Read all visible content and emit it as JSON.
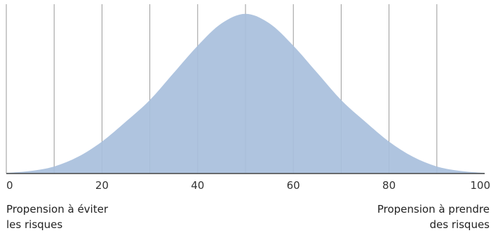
{
  "chart_data": {
    "type": "area",
    "title": "",
    "xlim": [
      0,
      100
    ],
    "ylim": [
      0,
      1.06
    ],
    "x_ticks": [
      0,
      20,
      40,
      60,
      80,
      100
    ],
    "x_tick_labels": [
      "0",
      "20",
      "40",
      "60",
      "80",
      "100"
    ],
    "grid_x": [
      10,
      20,
      30,
      40,
      50,
      60,
      70,
      80,
      90
    ],
    "grid": true,
    "x": [
      0,
      5,
      10,
      15,
      20,
      25,
      30,
      35,
      40,
      45,
      50,
      55,
      60,
      65,
      70,
      75,
      80,
      85,
      90,
      95,
      100
    ],
    "y": [
      0.004,
      0.016,
      0.044,
      0.105,
      0.2,
      0.325,
      0.46,
      0.63,
      0.8,
      0.94,
      1.0,
      0.94,
      0.8,
      0.63,
      0.46,
      0.325,
      0.2,
      0.105,
      0.044,
      0.016,
      0.004
    ],
    "annotations": {
      "left": [
        "Propension à éviter",
        "les risques"
      ],
      "right": [
        "Propension à prendre",
        "des risques"
      ]
    },
    "colors": {
      "fill": "#a8bfdc",
      "grid": "#9a9a9a",
      "axis": "#444444"
    }
  }
}
